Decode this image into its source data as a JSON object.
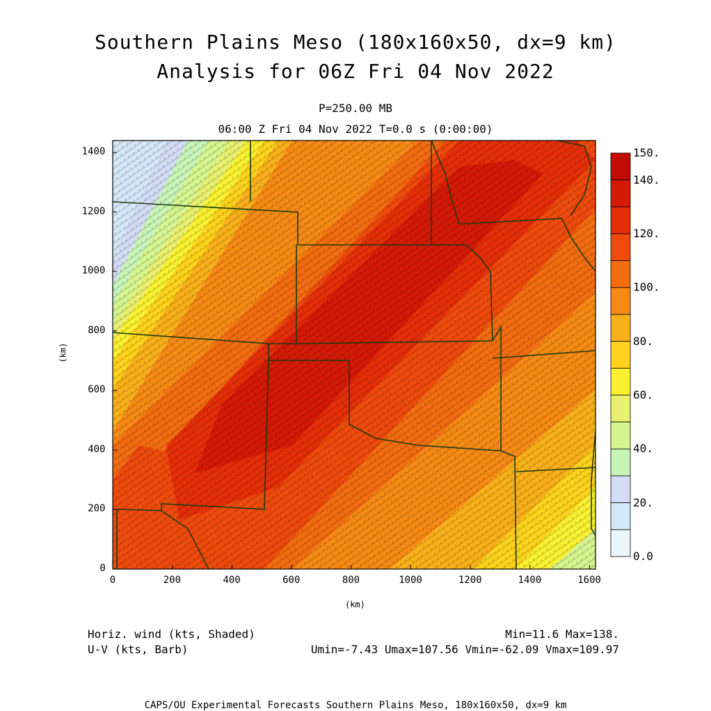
{
  "title_line1": "Southern Plains Meso (180x160x50, dx=9 km)",
  "title_line2": "Analysis for 06Z Fri 04 Nov 2022",
  "level_label": "P=250.00 MB",
  "time_label": "06:00 Z Fri 04 Nov 2022    T=0.0 s (0:00:00)",
  "x_axis": {
    "label": "(km)",
    "ticks": [
      "0",
      "200",
      "400",
      "600",
      "800",
      "1000",
      "1200",
      "1400",
      "1600"
    ],
    "range": [
      0,
      1620
    ]
  },
  "y_axis": {
    "label": "(km)",
    "ticks": [
      "0",
      "200",
      "400",
      "600",
      "800",
      "1000",
      "1200",
      "1400"
    ],
    "range": [
      0,
      1440
    ]
  },
  "colorbar": {
    "labels": [
      "0.0",
      "20.",
      "40.",
      "60.",
      "80.",
      "100.",
      "120.",
      "140.",
      "150."
    ],
    "colors": [
      "#eaf6fc",
      "#d4e8f8",
      "#d3dcf4",
      "#c8f4b8",
      "#d6f490",
      "#e8f070",
      "#f8f030",
      "#fcd21c",
      "#f8b01a",
      "#f68a14",
      "#f26c10",
      "#ee4a0c",
      "#e42e08",
      "#d41a06",
      "#c00c04"
    ]
  },
  "field_description": {
    "shaded_variable": "Horiz. wind (kts, Shaded)",
    "vector_variable": "U-V (kts, Barb)"
  },
  "stats": {
    "min_max": "Min=11.6 Max=138.",
    "uv": "Umin=-7.43 Umax=107.56 Vmin=-62.09 Vmax=109.97"
  },
  "footer": "CAPS/OU Experimental Forecasts  Southern Plains Meso, 180x160x50, dx=9 km"
}
